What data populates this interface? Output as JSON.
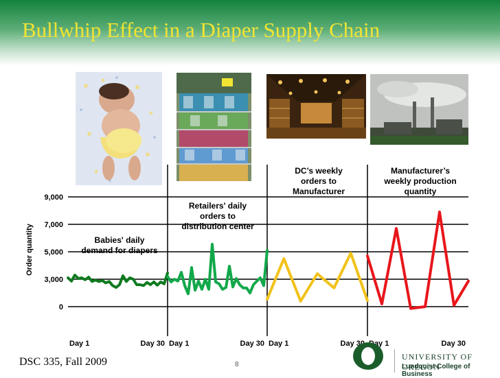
{
  "slide": {
    "title": "Bullwhip Effect in a Diaper Supply Chain",
    "footer_left": "DSC 335, Fall 2009",
    "page_number": "8",
    "university_name": "UNIVERSITY OF OREGON",
    "school_name": "Lundquist College of Business"
  },
  "photos": [
    "baby-in-diaper-photo",
    "store-diaper-shelves-photo",
    "distribution-center-photo",
    "factory-smokestacks-photo"
  ],
  "colors": {
    "title": "#f2e433",
    "babies": "#0e7a1f",
    "retailers": "#11a84a",
    "dc": "#f2c21b",
    "manufacturer": "#e8161b",
    "uo_green": "#1a5c2a"
  },
  "chart_data": {
    "type": "line",
    "ylabel": "Order quantity",
    "yticks": [
      "0",
      "3,000",
      "5,000",
      "7,000",
      "9,000"
    ],
    "grid": "horizontal lines at each tick",
    "panels": [
      {
        "annotation": [
          "Babies' daily",
          "demand for diapers"
        ],
        "x_tick_labels": [
          "Day 1",
          "Day 30"
        ],
        "color": "#0e7a1f",
        "values": [
          3100,
          2800,
          3300,
          3050,
          3100,
          2950,
          3150,
          2750,
          2900,
          2750,
          2850,
          2600,
          2750,
          2300,
          2100,
          2400,
          3250,
          2750,
          3100,
          3000,
          2400,
          2400,
          2300,
          2650,
          2400,
          2700,
          2350,
          2700,
          2500,
          3450
        ]
      },
      {
        "annotation": [
          "Retailers' daily",
          "orders to",
          "distribution center"
        ],
        "x_tick_labels": [
          "Day 1",
          "Day 30"
        ],
        "color": "#11a84a",
        "values": [
          3200,
          2700,
          3000,
          2800,
          3500,
          2300,
          1400,
          3850,
          1800,
          2800,
          1900,
          3000,
          1900,
          5550,
          2700,
          2500,
          1900,
          2100,
          3950,
          2150,
          3050,
          2400,
          2050,
          2050,
          1500,
          2400,
          2800,
          3100,
          2300,
          5100
        ]
      },
      {
        "annotation": [
          "DC’s weekly",
          "orders to",
          "Manufacturer"
        ],
        "x_tick_labels": [
          "Day 1",
          "Day 30"
        ],
        "color": "#f2c21b",
        "values": [
          800,
          4500,
          600,
          3400,
          2050,
          4900,
          650
        ]
      },
      {
        "annotation": [
          "Manufacturer’s",
          "weekly production",
          "quantity"
        ],
        "x_tick_labels": [
          "Day 1",
          "Day 30"
        ],
        "color": "#e8161b",
        "values": [
          4700,
          300,
          6700,
          -200,
          0,
          7900,
          150,
          2800
        ]
      }
    ]
  }
}
